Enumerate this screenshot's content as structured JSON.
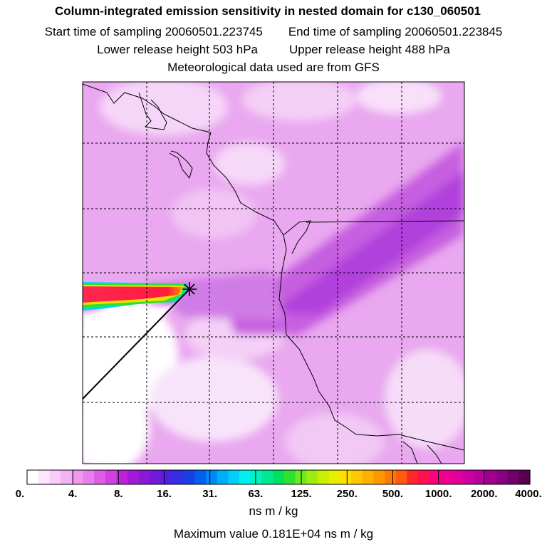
{
  "header": {
    "title": "Column-integrated emission sensitivity in nested domain for c130_060501",
    "start_label": "Start time of sampling 20060501.223745",
    "end_label": "End time of sampling 20060501.223845",
    "lower_label": "Lower release height  503 hPa",
    "upper_label": "Upper release height  488 hPa",
    "met_label": "Meteorological data used are from GFS"
  },
  "colorbar": {
    "tick_labels": [
      "0.",
      "4.",
      "8.",
      "16.",
      "31.",
      "63.",
      "125.",
      "250.",
      "500.",
      "1000.",
      "2000.",
      "4000."
    ],
    "colors": [
      "#ffffff",
      "#fde6fd",
      "#f9ccf9",
      "#f4b3f4",
      "#ef99ef",
      "#e880ec",
      "#dc5fe6",
      "#d040e2",
      "#c020dc",
      "#a418d8",
      "#8a18d8",
      "#7018dc",
      "#5020e0",
      "#3030e0",
      "#1840e8",
      "#0060f0",
      "#0088f8",
      "#00aef8",
      "#00d0f8",
      "#00f0f0",
      "#00f0c0",
      "#00e890",
      "#00e060",
      "#30e030",
      "#70e820",
      "#a0ec10",
      "#c8f000",
      "#e8f000",
      "#ffe000",
      "#ffc800",
      "#ffb000",
      "#ff9800",
      "#ff7a00",
      "#ff5a10",
      "#ff2828",
      "#ff1050",
      "#ff0080",
      "#f00090",
      "#e0009c",
      "#cc00a0",
      "#b8009c",
      "#a00090",
      "#880080",
      "#700068",
      "#580050"
    ],
    "unit_label": "ns m / kg"
  },
  "footer": {
    "max_label": "Maximum value  0.181E+04 ns m / kg"
  },
  "map": {
    "release_marker": "star-icon"
  }
}
